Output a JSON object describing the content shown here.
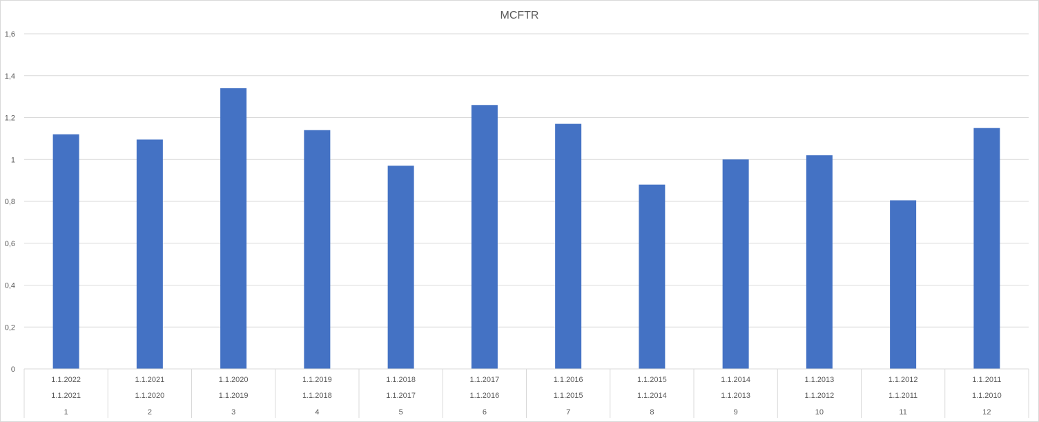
{
  "chart_data": {
    "type": "bar",
    "title": "MCFTR",
    "ylim": [
      0,
      1.6
    ],
    "y_ticks": [
      "0",
      "0,2",
      "0,4",
      "0,6",
      "0,8",
      "1",
      "1,2",
      "1,4",
      "1,6"
    ],
    "y_tick_values": [
      0,
      0.2,
      0.4,
      0.6,
      0.8,
      1.0,
      1.2,
      1.4,
      1.6
    ],
    "grid": true,
    "legend": "none",
    "bar_color": "#4472C4",
    "categories": [
      {
        "row1": "1.1.2022",
        "row2": "1.1.2021",
        "row3": "1"
      },
      {
        "row1": "1.1.2021",
        "row2": "1.1.2020",
        "row3": "2"
      },
      {
        "row1": "1.1.2020",
        "row2": "1.1.2019",
        "row3": "3"
      },
      {
        "row1": "1.1.2019",
        "row2": "1.1.2018",
        "row3": "4"
      },
      {
        "row1": "1.1.2018",
        "row2": "1.1.2017",
        "row3": "5"
      },
      {
        "row1": "1.1.2017",
        "row2": "1.1.2016",
        "row3": "6"
      },
      {
        "row1": "1.1.2016",
        "row2": "1.1.2015",
        "row3": "7"
      },
      {
        "row1": "1.1.2015",
        "row2": "1.1.2014",
        "row3": "8"
      },
      {
        "row1": "1.1.2014",
        "row2": "1.1.2013",
        "row3": "9"
      },
      {
        "row1": "1.1.2013",
        "row2": "1.1.2012",
        "row3": "10"
      },
      {
        "row1": "1.1.2012",
        "row2": "1.1.2011",
        "row3": "11"
      },
      {
        "row1": "1.1.2011",
        "row2": "1.1.2010",
        "row3": "12"
      }
    ],
    "values": [
      1.12,
      1.095,
      1.34,
      1.14,
      0.97,
      1.26,
      1.17,
      0.88,
      1.0,
      1.02,
      0.805,
      1.15
    ]
  }
}
